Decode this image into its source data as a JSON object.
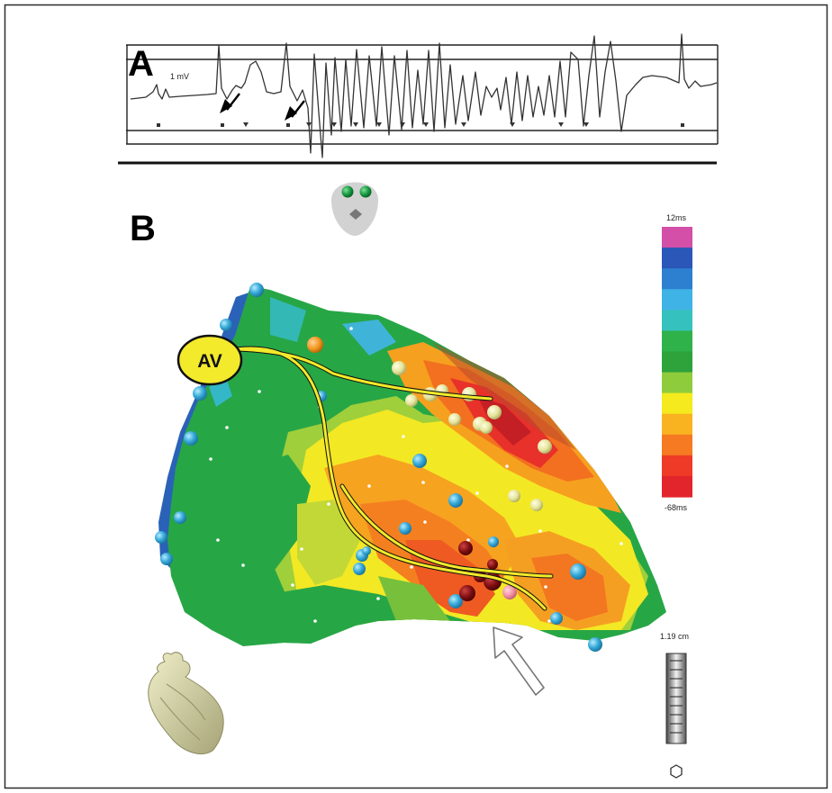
{
  "panel_a": {
    "letter": "A",
    "scale_label": "1 mV"
  },
  "panel_b": {
    "letter": "B",
    "av_label": "AV",
    "color_bar": {
      "top_label": "12ms",
      "bottom_label": "-68ms",
      "colors": [
        "#d34fa8",
        "#2a57b8",
        "#2d7fd0",
        "#3fb2e6",
        "#35c2bf",
        "#2fb24a",
        "#2ea33c",
        "#8fcc3c",
        "#f4ea1e",
        "#f9b321",
        "#f57a22",
        "#ee3a26",
        "#e2242c"
      ]
    },
    "scale_bar_label": "1.19 cm"
  }
}
